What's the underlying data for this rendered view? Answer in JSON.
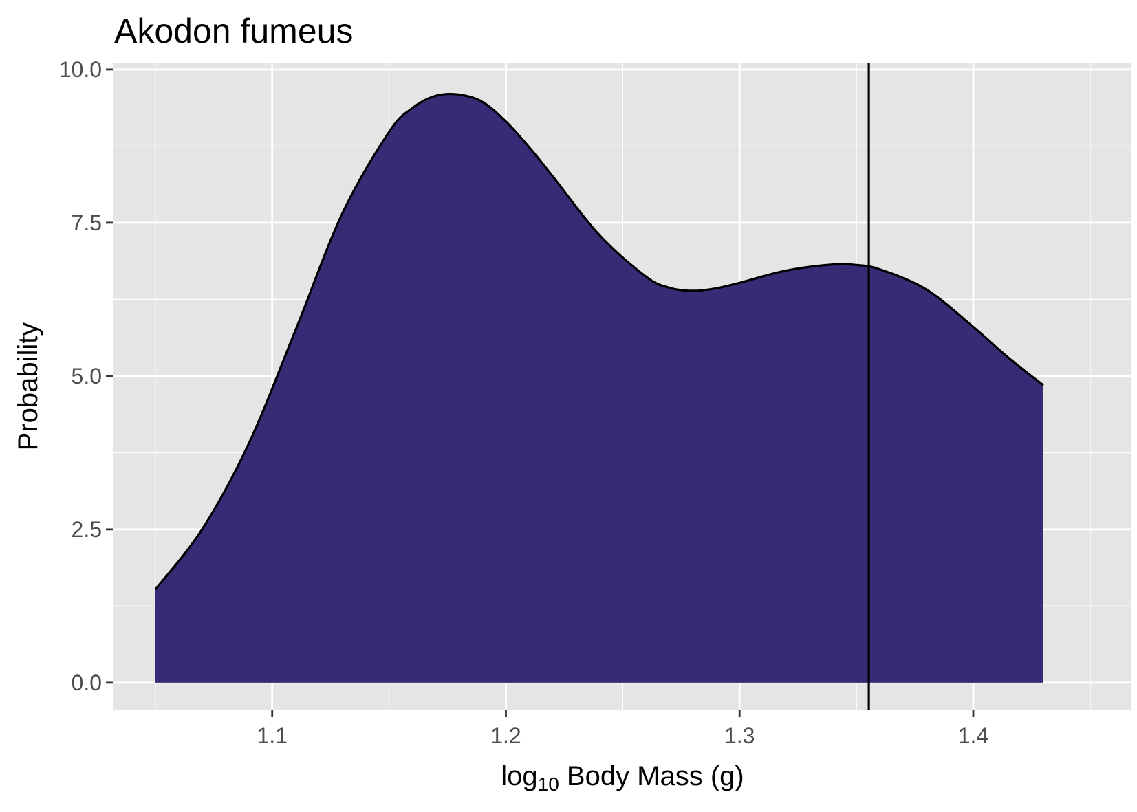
{
  "chart_data": {
    "type": "area",
    "title": "Akodon fumeus",
    "xlabel": {
      "prefix": "log",
      "subscript": "10",
      "suffix": " Body Mass (g)"
    },
    "ylabel": "Probability",
    "xlim": [
      1.0318,
      1.4677
    ],
    "ylim": [
      -0.45,
      10.1
    ],
    "x_ticks": [
      1.1,
      1.2,
      1.3,
      1.4
    ],
    "x_tick_labels": [
      "1.1",
      "1.2",
      "1.3",
      "1.4"
    ],
    "y_ticks": [
      0,
      2.5,
      5,
      7.5,
      10
    ],
    "y_tick_labels": [
      "0.0",
      "2.5",
      "5.0",
      "7.5",
      "10.0"
    ],
    "x_minor_breaks": [
      1.05,
      1.15,
      1.25,
      1.35,
      1.45
    ],
    "y_minor_breaks": [
      1.25,
      3.75,
      6.25,
      8.75
    ],
    "grid": true,
    "legend": "none",
    "series": [
      {
        "x": [
          1.05,
          1.07,
          1.09,
          1.11,
          1.13,
          1.15,
          1.16,
          1.17,
          1.18,
          1.19,
          1.2,
          1.21,
          1.22,
          1.24,
          1.26,
          1.27,
          1.28,
          1.29,
          1.3,
          1.32,
          1.34,
          1.35,
          1.36,
          1.38,
          1.4,
          1.415,
          1.43
        ],
        "y": [
          1.52,
          2.5,
          3.9,
          5.75,
          7.65,
          8.98,
          9.37,
          9.57,
          9.59,
          9.47,
          9.15,
          8.73,
          8.26,
          7.3,
          6.62,
          6.44,
          6.39,
          6.43,
          6.52,
          6.72,
          6.82,
          6.81,
          6.74,
          6.41,
          5.8,
          5.3,
          4.85
        ]
      }
    ],
    "reference_line": {
      "x": 1.3553
    },
    "colors": {
      "fill": "#372b76",
      "outline": "#000000",
      "panel": "#e5e5e5",
      "grid": "#ffffff",
      "tick_text": "#4d4d4d"
    }
  }
}
